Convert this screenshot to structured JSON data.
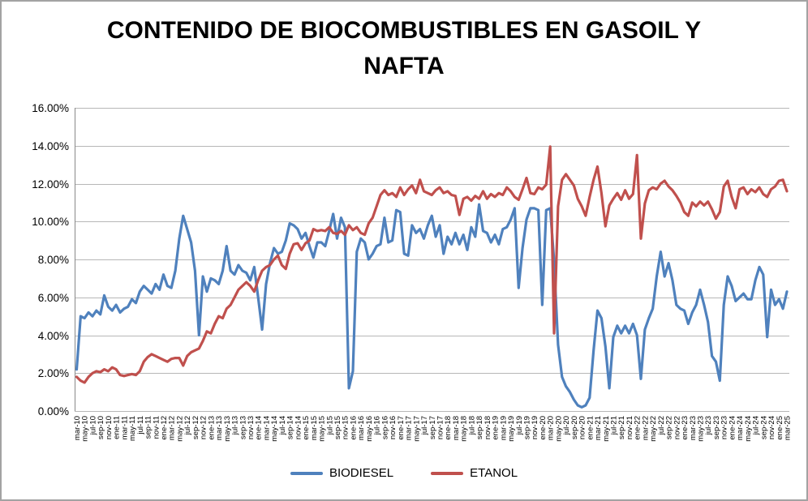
{
  "title": "CONTENIDO DE BIOCOMBUSTIBLES EN GASOIL Y NAFTA",
  "colors": {
    "biodiesel": "#4F81BD",
    "etanol": "#C0504D",
    "grid": "#b7b7b7",
    "axis": "#898989",
    "border": "#a3a3a3",
    "text": "#000000"
  },
  "chart_data": {
    "type": "line",
    "title": "CONTENIDO DE BIOCOMBUSTIBLES EN GASOIL Y NAFTA",
    "xlabel": "",
    "ylabel": "",
    "ylim": [
      0,
      16
    ],
    "ytick_step": 2,
    "ytick_format": "0.00%",
    "grid": true,
    "legend_position": "bottom",
    "tick_every": 2,
    "months": [
      "mar-10",
      "abr-10",
      "may-10",
      "jun-10",
      "jul-10",
      "ago-10",
      "sep-10",
      "oct-10",
      "nov-10",
      "dic-10",
      "ene-11",
      "feb-11",
      "mar-11",
      "abr-11",
      "may-11",
      "jun-11",
      "jul-11",
      "ago-11",
      "sep-11",
      "oct-11",
      "nov-11",
      "dic-11",
      "ene-12",
      "feb-12",
      "mar-12",
      "abr-12",
      "may-12",
      "jun-12",
      "jul-12",
      "ago-12",
      "sep-12",
      "oct-12",
      "nov-12",
      "dic-12",
      "ene-13",
      "feb-13",
      "mar-13",
      "abr-13",
      "may-13",
      "jun-13",
      "jul-13",
      "ago-13",
      "sep-13",
      "oct-13",
      "nov-13",
      "dic-13",
      "ene-14",
      "feb-14",
      "mar-14",
      "abr-14",
      "may-14",
      "jun-14",
      "jul-14",
      "ago-14",
      "sep-14",
      "oct-14",
      "nov-14",
      "dic-14",
      "ene-15",
      "feb-15",
      "mar-15",
      "abr-15",
      "may-15",
      "jun-15",
      "jul-15",
      "ago-15",
      "sep-15",
      "oct-15",
      "nov-15",
      "dic-15",
      "ene-16",
      "feb-16",
      "mar-16",
      "abr-16",
      "may-16",
      "jun-16",
      "jul-16",
      "ago-16",
      "sep-16",
      "oct-16",
      "nov-16",
      "dic-16",
      "ene-17",
      "feb-17",
      "mar-17",
      "abr-17",
      "may-17",
      "jun-17",
      "jul-17",
      "ago-17",
      "sep-17",
      "oct-17",
      "nov-17",
      "dic-17",
      "ene-18",
      "feb-18",
      "mar-18",
      "abr-18",
      "may-18",
      "jun-18",
      "jul-18",
      "ago-18",
      "sep-18",
      "oct-18",
      "nov-18",
      "dic-18",
      "ene-19",
      "feb-19",
      "mar-19",
      "abr-19",
      "may-19",
      "jun-19",
      "jul-19",
      "ago-19",
      "sep-19",
      "oct-19",
      "nov-19",
      "dic-19",
      "ene-20",
      "feb-20",
      "mar-20",
      "abr-20",
      "may-20",
      "jun-20",
      "jul-20",
      "ago-20",
      "sep-20",
      "oct-20",
      "nov-20",
      "dic-20",
      "ene-21",
      "feb-21",
      "mar-21",
      "abr-21",
      "may-21",
      "jun-21",
      "jul-21",
      "ago-21",
      "sep-21",
      "oct-21",
      "nov-21",
      "dic-21",
      "ene-22",
      "feb-22",
      "mar-22",
      "abr-22",
      "may-22",
      "jun-22",
      "jul-22",
      "ago-22",
      "sep-22",
      "oct-22",
      "nov-22",
      "dic-22",
      "ene-23",
      "feb-23",
      "mar-23",
      "abr-23",
      "may-23",
      "jun-23",
      "jul-23",
      "ago-23",
      "sep-23",
      "oct-23",
      "nov-23",
      "dic-23",
      "ene-24",
      "feb-24",
      "mar-24",
      "abr-24",
      "may-24",
      "jun-24",
      "jul-24",
      "ago-24",
      "sep-24",
      "oct-24",
      "nov-24",
      "dic-24",
      "ene-25",
      "feb-25",
      "mar-25"
    ],
    "series": [
      {
        "name": "BIODIESEL",
        "color": "#4F81BD",
        "values": [
          2.2,
          5.0,
          4.9,
          5.2,
          5.0,
          5.3,
          5.1,
          6.1,
          5.5,
          5.3,
          5.6,
          5.2,
          5.4,
          5.5,
          5.9,
          5.7,
          6.3,
          6.6,
          6.4,
          6.2,
          6.7,
          6.4,
          7.2,
          6.6,
          6.5,
          7.4,
          9.1,
          10.3,
          9.6,
          8.9,
          7.4,
          4.0,
          7.1,
          6.3,
          7.0,
          6.9,
          6.7,
          7.4,
          8.7,
          7.4,
          7.2,
          7.7,
          7.4,
          7.3,
          6.9,
          7.6,
          6.0,
          4.3,
          6.7,
          7.8,
          8.6,
          8.3,
          8.4,
          9.0,
          9.9,
          9.8,
          9.6,
          9.1,
          9.4,
          8.7,
          8.1,
          8.9,
          8.9,
          8.7,
          9.5,
          10.4,
          9.1,
          10.2,
          9.7,
          1.2,
          2.1,
          8.4,
          9.1,
          8.9,
          8.0,
          8.3,
          8.7,
          8.8,
          10.2,
          8.9,
          9.0,
          10.6,
          10.5,
          8.3,
          8.2,
          9.8,
          9.4,
          9.6,
          9.1,
          9.8,
          10.3,
          9.2,
          9.8,
          8.3,
          9.2,
          8.8,
          9.4,
          8.8,
          9.3,
          8.5,
          9.7,
          9.2,
          10.9,
          9.5,
          9.4,
          8.9,
          9.3,
          8.8,
          9.6,
          9.7,
          10.1,
          10.7,
          6.5,
          8.6,
          10.1,
          10.7,
          10.7,
          10.6,
          5.6,
          10.6,
          10.7,
          7.9,
          3.5,
          1.8,
          1.3,
          1.0,
          0.6,
          0.3,
          0.2,
          0.3,
          0.7,
          3.2,
          5.3,
          4.9,
          3.4,
          1.2,
          3.9,
          4.5,
          4.1,
          4.5,
          4.1,
          4.6,
          4.0,
          1.7,
          4.3,
          4.9,
          5.4,
          7.1,
          8.4,
          7.1,
          7.8,
          6.9,
          5.6,
          5.4,
          5.3,
          4.6,
          5.2,
          5.6,
          6.4,
          5.6,
          4.7,
          2.9,
          2.6,
          1.6,
          5.6,
          7.1,
          6.6,
          5.8,
          6.0,
          6.2,
          5.9,
          5.9,
          6.9,
          7.6,
          7.2,
          3.9,
          6.4,
          5.6,
          5.9,
          5.4,
          6.3
        ]
      },
      {
        "name": "ETANOL",
        "color": "#C0504D",
        "values": [
          1.8,
          1.6,
          1.5,
          1.8,
          2.0,
          2.1,
          2.05,
          2.2,
          2.1,
          2.3,
          2.2,
          1.9,
          1.85,
          1.9,
          1.95,
          1.9,
          2.1,
          2.6,
          2.85,
          3.0,
          2.9,
          2.8,
          2.7,
          2.6,
          2.75,
          2.8,
          2.8,
          2.4,
          2.9,
          3.1,
          3.2,
          3.3,
          3.7,
          4.2,
          4.1,
          4.6,
          5.0,
          4.9,
          5.4,
          5.6,
          6.0,
          6.4,
          6.6,
          6.8,
          6.6,
          6.3,
          6.9,
          7.4,
          7.6,
          7.7,
          8.0,
          8.2,
          7.7,
          7.5,
          8.3,
          8.8,
          8.85,
          8.5,
          8.85,
          9.0,
          9.6,
          9.5,
          9.55,
          9.5,
          9.7,
          9.4,
          9.35,
          9.5,
          9.3,
          9.8,
          9.55,
          9.7,
          9.4,
          9.3,
          9.9,
          10.2,
          10.8,
          11.4,
          11.65,
          11.4,
          11.5,
          11.3,
          11.8,
          11.4,
          11.7,
          11.9,
          11.5,
          12.2,
          11.6,
          11.5,
          11.4,
          11.65,
          11.8,
          11.5,
          11.6,
          11.4,
          11.35,
          10.35,
          11.2,
          11.3,
          11.1,
          11.35,
          11.2,
          11.6,
          11.2,
          11.45,
          11.3,
          11.5,
          11.4,
          11.8,
          11.6,
          11.3,
          11.15,
          11.7,
          12.3,
          11.5,
          11.45,
          11.8,
          11.7,
          11.95,
          13.95,
          4.1,
          10.8,
          12.2,
          12.5,
          12.2,
          11.9,
          11.2,
          10.8,
          10.3,
          11.3,
          12.2,
          12.9,
          11.5,
          9.75,
          10.85,
          11.2,
          11.5,
          11.15,
          11.65,
          11.2,
          11.45,
          13.5,
          9.1,
          10.95,
          11.65,
          11.8,
          11.7,
          12.0,
          12.15,
          11.85,
          11.65,
          11.35,
          11.0,
          10.5,
          10.3,
          11.0,
          10.8,
          11.05,
          10.85,
          11.05,
          10.65,
          10.15,
          10.5,
          11.85,
          12.15,
          11.3,
          10.7,
          11.7,
          11.8,
          11.45,
          11.7,
          11.55,
          11.8,
          11.45,
          11.3,
          11.7,
          11.85,
          12.15,
          12.2,
          11.6
        ]
      }
    ]
  }
}
